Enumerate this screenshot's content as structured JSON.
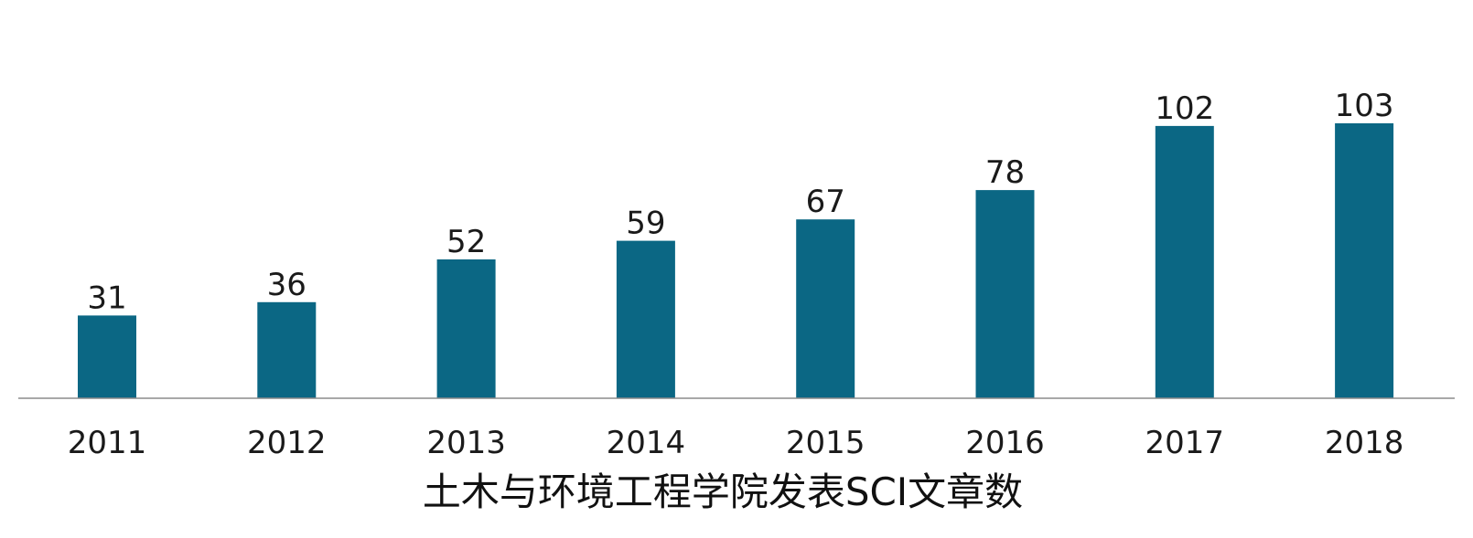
{
  "colors": {
    "bar": "#0b6784",
    "axis": "#8c8c8c",
    "text": "#1a1a1a"
  },
  "chart_data": {
    "type": "bar",
    "title": "土木与环境工程学院发表SCI文章数",
    "xlabel": "",
    "ylabel": "",
    "categories": [
      "2011",
      "2012",
      "2013",
      "2014",
      "2015",
      "2016",
      "2017",
      "2018"
    ],
    "values": [
      31,
      36,
      52,
      59,
      67,
      78,
      102,
      103
    ],
    "data_labels": [
      "31",
      "36",
      "52",
      "59",
      "67",
      "78",
      "102",
      "103"
    ],
    "ylim": [
      0,
      103
    ],
    "grid": false,
    "legend": "none"
  }
}
